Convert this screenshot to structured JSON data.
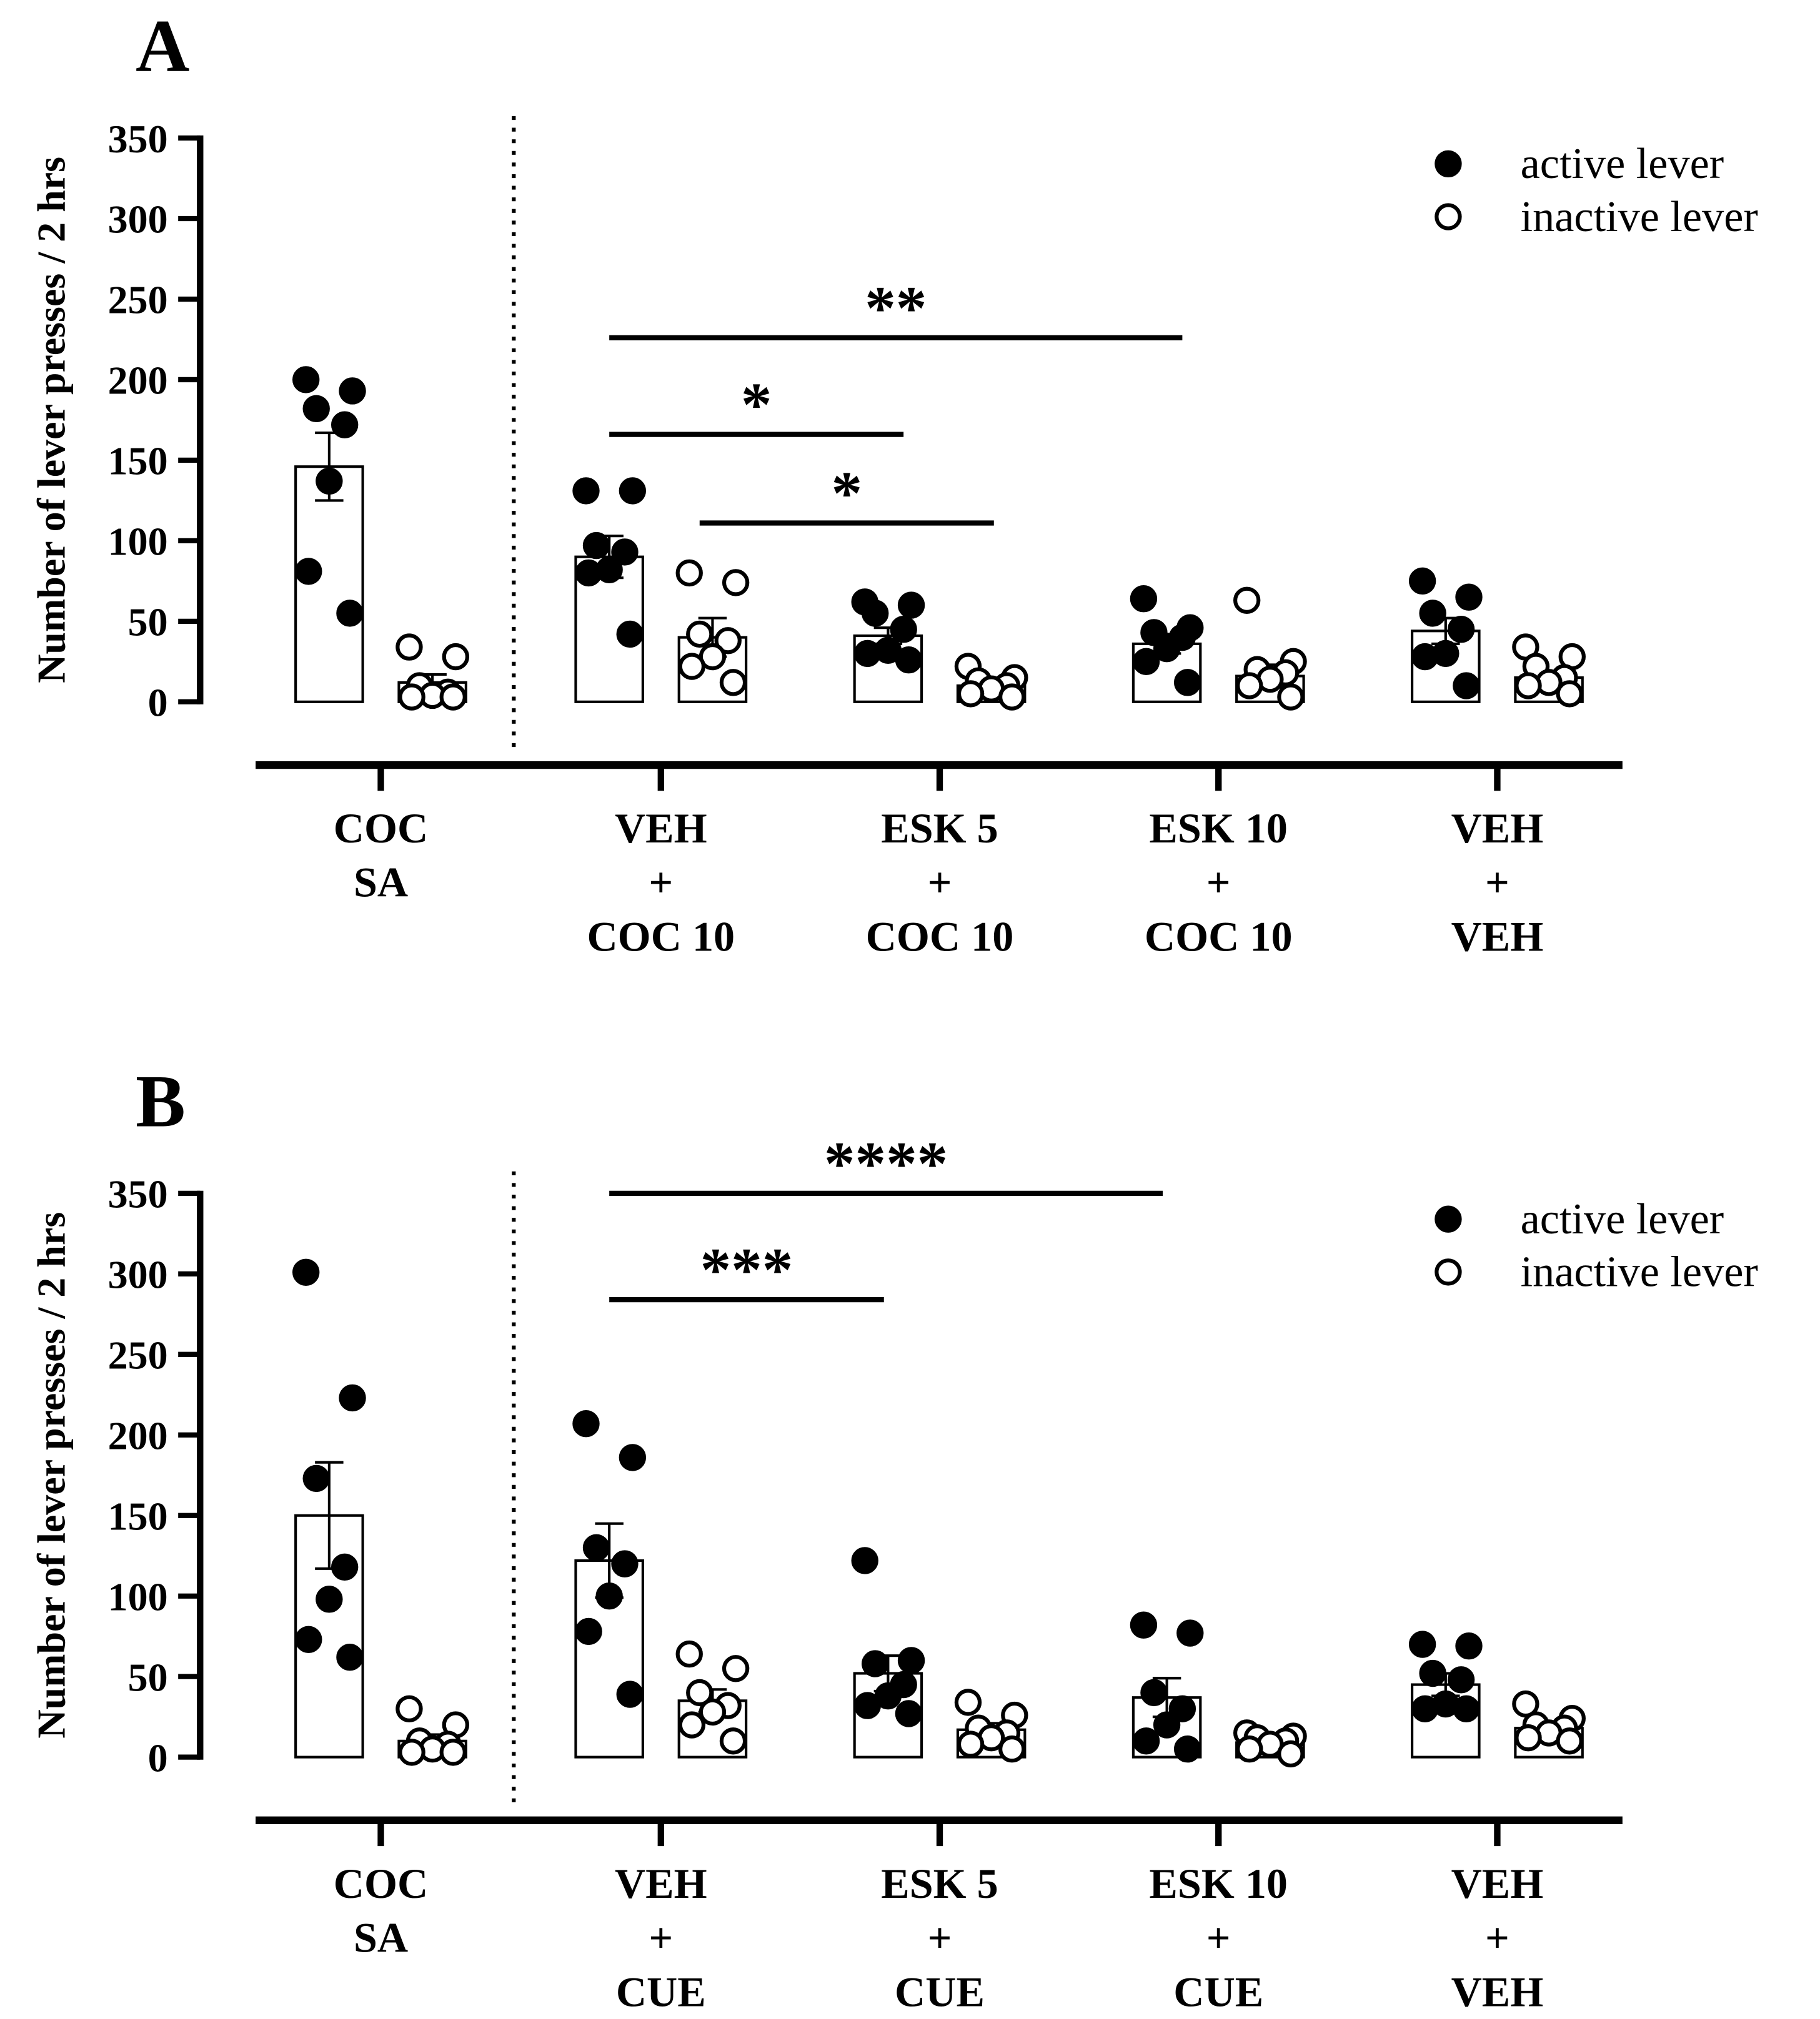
{
  "chart_data": [
    {
      "panel": "A",
      "type": "bar",
      "ylabel": "Number of lever presses / 2 hrs",
      "ylim": [
        0,
        350
      ],
      "yticks": [
        0,
        50,
        100,
        150,
        200,
        250,
        300,
        350
      ],
      "legend": {
        "placement": "top-right",
        "entries": [
          "active lever",
          "inactive lever"
        ]
      },
      "categories": [
        [
          "COC",
          "SA"
        ],
        [
          "VEH",
          "+",
          "COC 10"
        ],
        [
          "ESK 5",
          "+",
          "COC 10"
        ],
        [
          "ESK 10",
          "+",
          "COC 10"
        ],
        [
          "VEH",
          "+",
          "VEH"
        ]
      ],
      "series": [
        {
          "name": "active lever",
          "means": [
            146,
            90,
            41,
            36,
            44
          ],
          "sem": [
            21,
            13,
            5,
            6,
            8
          ],
          "points": [
            [
              200,
              193,
              182,
              172,
              137,
              81,
              55
            ],
            [
              131,
              131,
              97,
              93,
              82,
              80,
              42
            ],
            [
              62,
              60,
              55,
              45,
              32,
              30,
              26
            ],
            [
              64,
              46,
              43,
              40,
              33,
              25,
              12
            ],
            [
              75,
              65,
              55,
              45,
              30,
              28,
              10
            ]
          ]
        },
        {
          "name": "inactive lever",
          "means": [
            12,
            40,
            10,
            16,
            15
          ],
          "sem": [
            5,
            12,
            3,
            7,
            4
          ],
          "points": [
            [
              34,
              28,
              10,
              6,
              4,
              3,
              3
            ],
            [
              80,
              74,
              42,
              38,
              28,
              22,
              12
            ],
            [
              22,
              15,
              13,
              10,
              8,
              5,
              3
            ],
            [
              63,
              25,
              20,
              18,
              14,
              10,
              3
            ],
            [
              34,
              28,
              22,
              15,
              12,
              10,
              5
            ]
          ]
        }
      ],
      "significance": [
        {
          "label": "**",
          "from": 1,
          "to": 3,
          "y": 226
        },
        {
          "label": "*",
          "from": 1,
          "to": 2,
          "y": 166
        },
        {
          "label": "*",
          "from": 1.5,
          "to": 2.5,
          "y": 111
        }
      ]
    },
    {
      "panel": "B",
      "type": "bar",
      "ylabel": "Number of lever presses / 2 hrs",
      "ylim": [
        0,
        350
      ],
      "yticks": [
        0,
        50,
        100,
        150,
        200,
        250,
        300,
        350
      ],
      "legend": {
        "placement": "top-right",
        "entries": [
          "active lever",
          "inactive lever"
        ]
      },
      "categories": [
        [
          "COC",
          "SA"
        ],
        [
          "VEH",
          "+",
          "CUE"
        ],
        [
          "ESK 5",
          "+",
          "CUE"
        ],
        [
          "ESK 10",
          "+",
          "CUE"
        ],
        [
          "VEH",
          "+",
          "VEH"
        ]
      ],
      "series": [
        {
          "name": "active lever",
          "means": [
            150,
            122,
            52,
            37,
            45
          ],
          "sem": [
            33,
            23,
            11,
            12,
            7
          ],
          "points": [
            [
              301,
              223,
              173,
              118,
              98,
              73,
              62
            ],
            [
              207,
              186,
              130,
              120,
              100,
              78,
              39
            ],
            [
              122,
              60,
              58,
              45,
              38,
              32,
              27
            ],
            [
              82,
              77,
              40,
              30,
              20,
              10,
              5
            ],
            [
              70,
              69,
              52,
              48,
              33,
              30,
              30
            ]
          ]
        },
        {
          "name": "inactive lever",
          "means": [
            10,
            35,
            17,
            9,
            18
          ],
          "sem": [
            4,
            7,
            4,
            2,
            3
          ],
          "points": [
            [
              30,
              20,
              10,
              8,
              5,
              3,
              3
            ],
            [
              64,
              55,
              40,
              32,
              28,
              20,
              10
            ],
            [
              34,
              26,
              18,
              15,
              12,
              8,
              5
            ],
            [
              15,
              13,
              12,
              10,
              8,
              5,
              2
            ],
            [
              33,
              24,
              20,
              18,
              15,
              12,
              10
            ]
          ]
        }
      ],
      "significance": [
        {
          "label": "****",
          "from": 1,
          "to": 2.8,
          "y": 350
        },
        {
          "label": "***",
          "from": 1,
          "to": 1.8,
          "y": 284
        }
      ]
    }
  ]
}
